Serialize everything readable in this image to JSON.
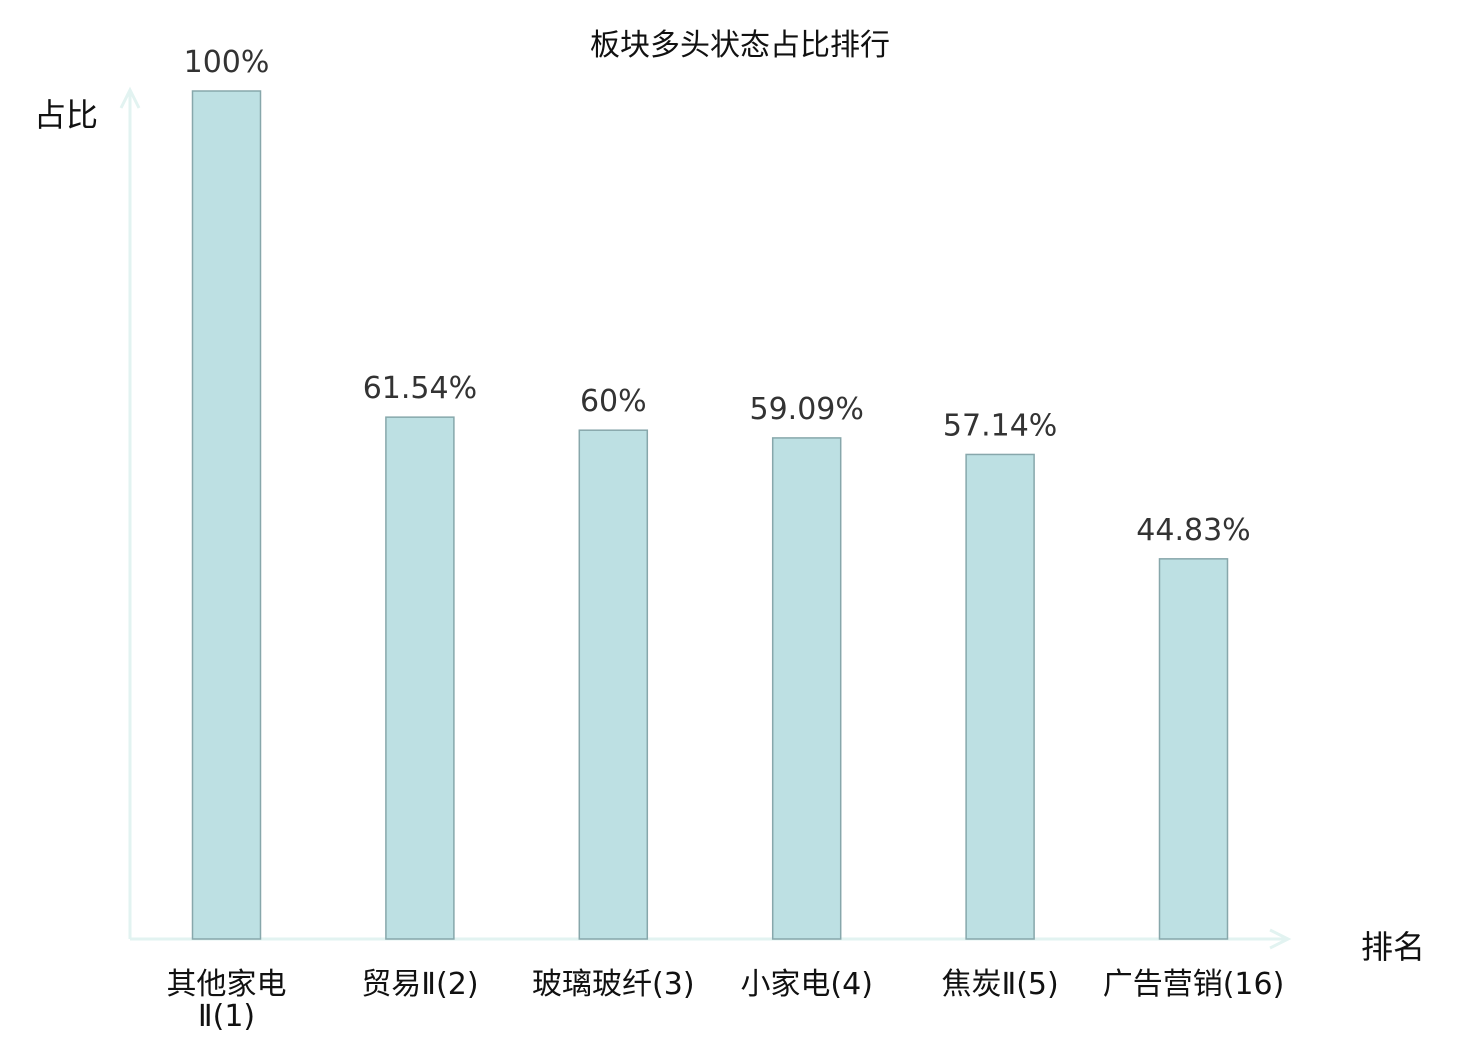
{
  "chart_data": {
    "type": "bar",
    "title": "板块多头状态占比排行",
    "xlabel": "排名",
    "ylabel": "占比",
    "categories": [
      {
        "lines": [
          "其他家电",
          "Ⅱ(1)"
        ],
        "highlight": false
      },
      {
        "lines": [
          "贸易Ⅱ(2)"
        ],
        "highlight": false
      },
      {
        "lines": [
          "玻璃玻纤(3)"
        ],
        "highlight": false
      },
      {
        "lines": [
          "小家电(4)"
        ],
        "highlight": false
      },
      {
        "lines": [
          "焦炭Ⅱ(5)"
        ],
        "highlight": false
      },
      {
        "lines": [
          "广告营销(16)"
        ],
        "highlight": true
      }
    ],
    "values": [
      100,
      61.54,
      60,
      59.09,
      57.14,
      44.83
    ],
    "value_labels": [
      "100%",
      "61.54%",
      "60%",
      "59.09%",
      "57.14%",
      "44.83%"
    ],
    "ylim": [
      0,
      100
    ],
    "grid": false,
    "colors": {
      "bar_fill": "#bde0e3",
      "bar_stroke": "#87a7ab",
      "axis": "#e2f3f1",
      "highlight_text": "#e8191c",
      "text": "#111111"
    }
  }
}
